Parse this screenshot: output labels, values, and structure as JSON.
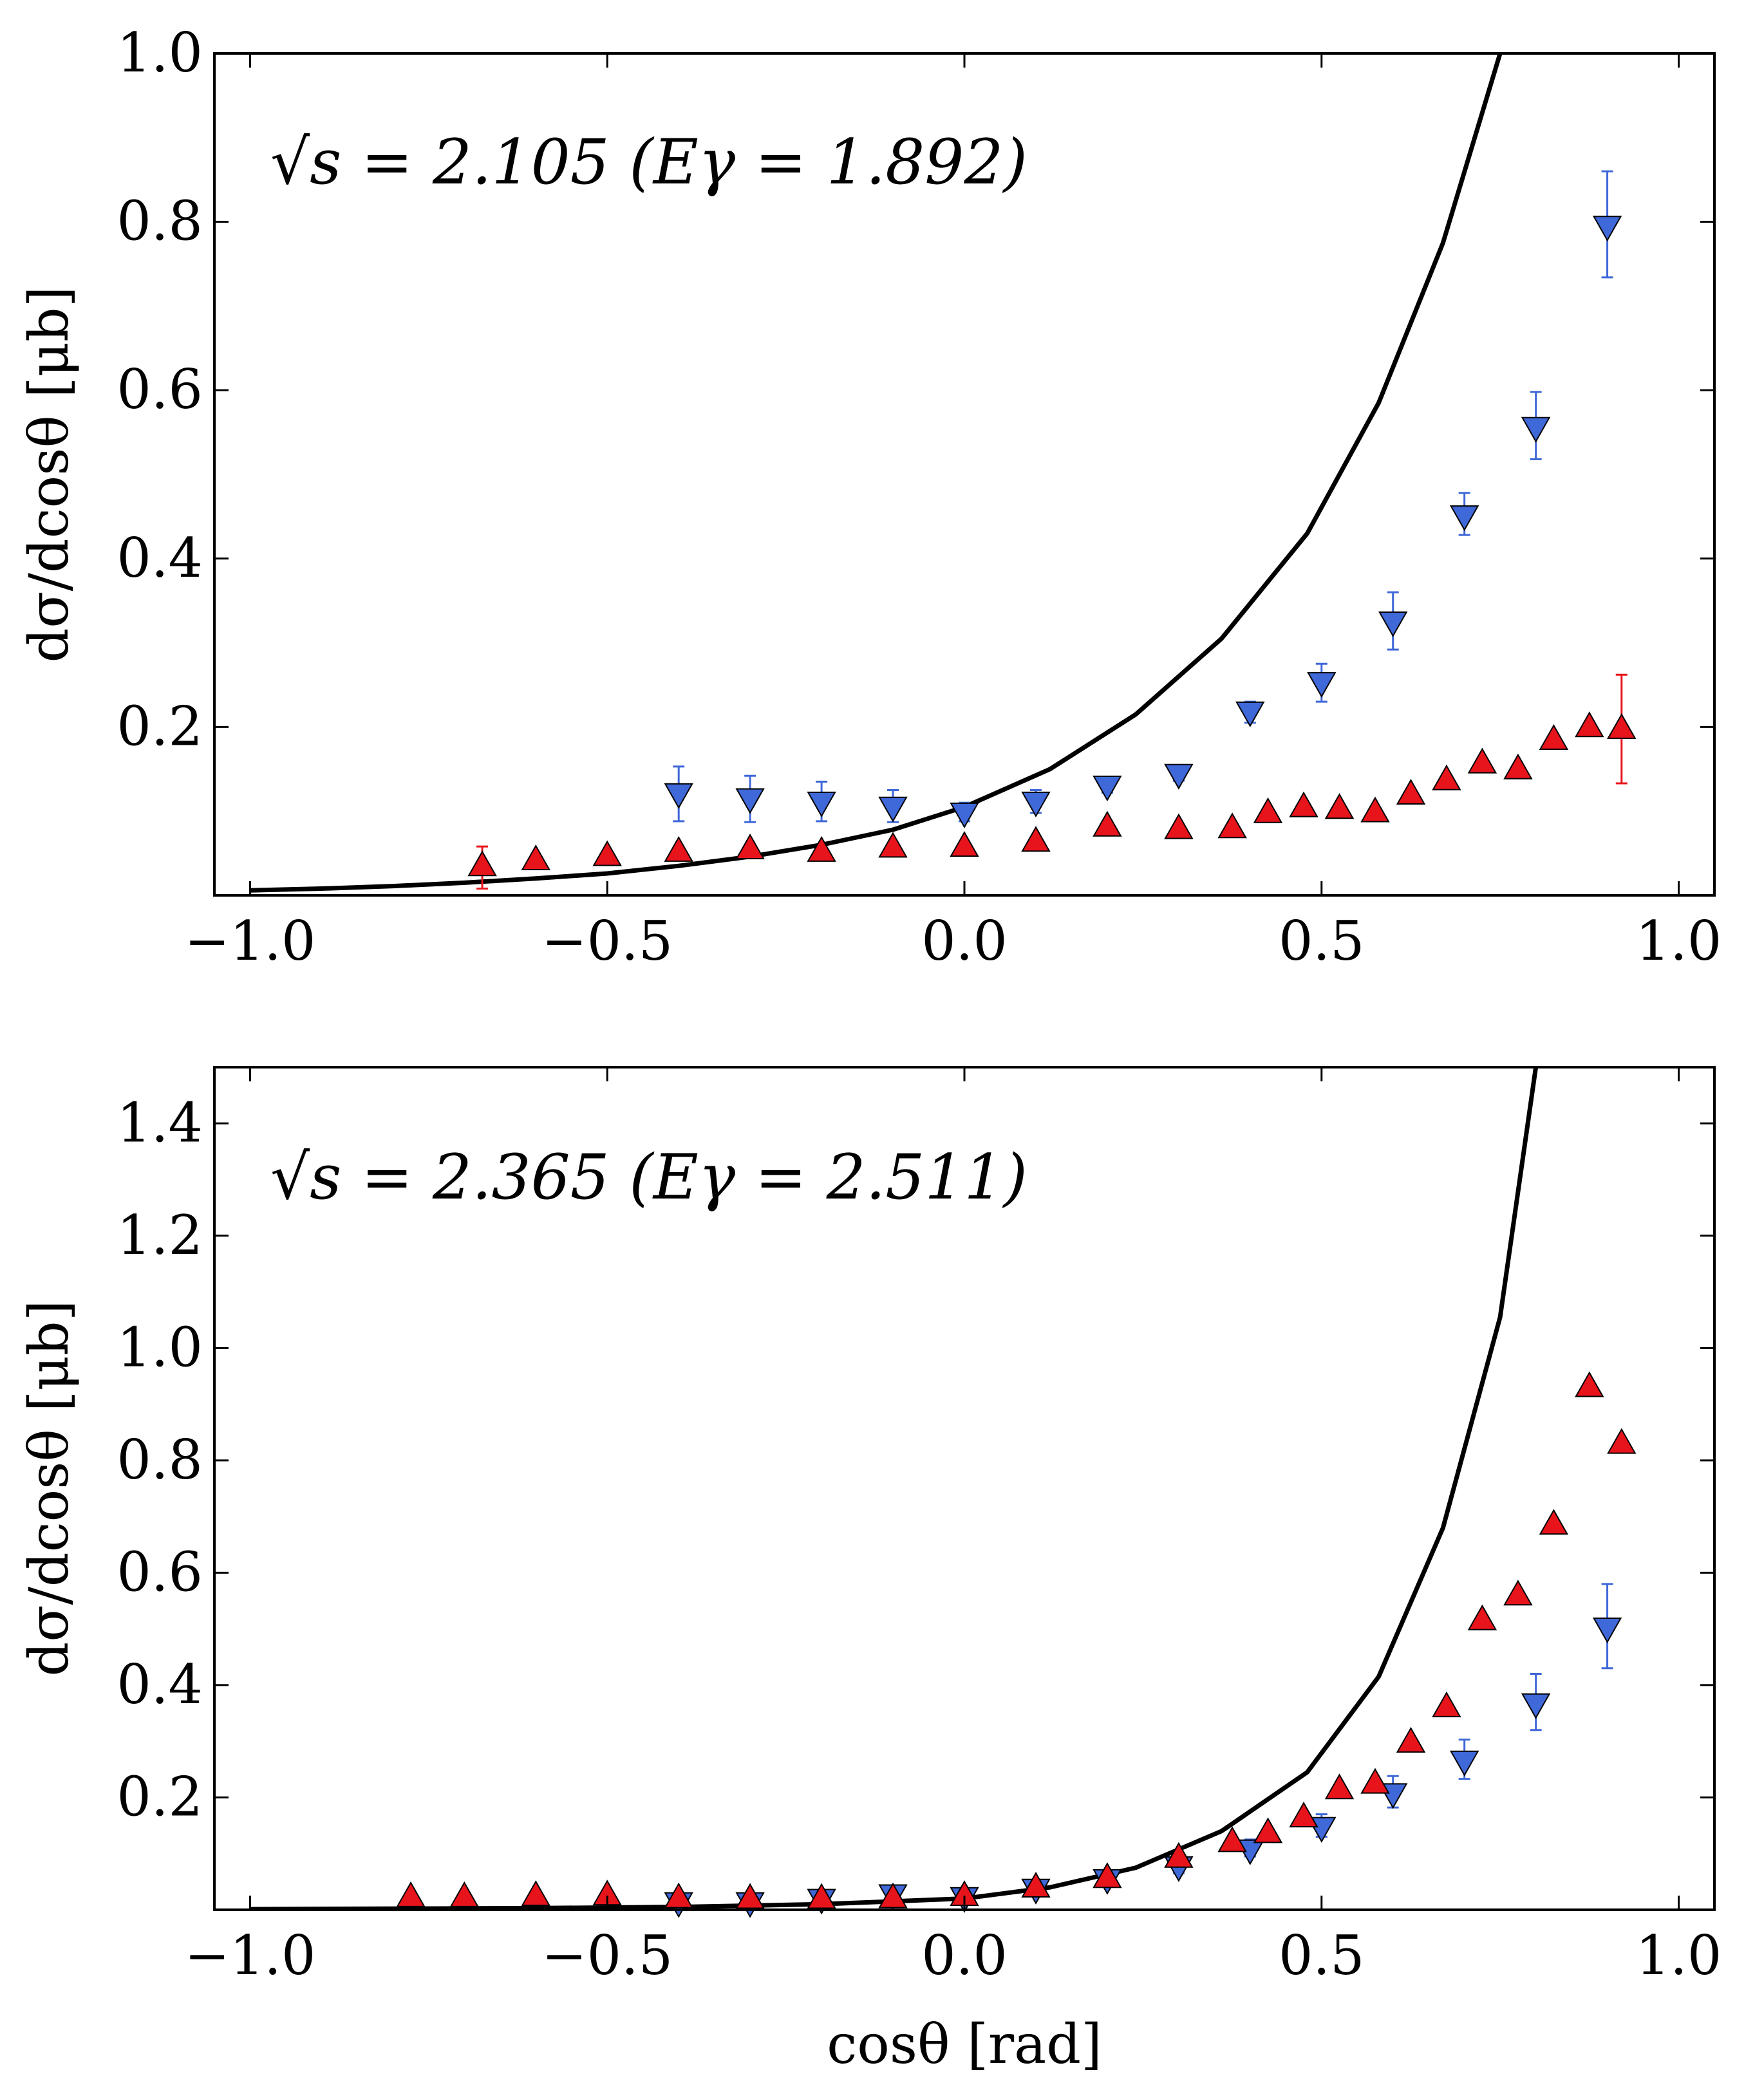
{
  "chart_data": [
    {
      "type": "scatter",
      "panel": "top",
      "annotation": "√s = 2.105 (Eγ = 1.892)",
      "xlabel": "",
      "ylabel": "dσ/dcosθ [μb]",
      "xlim": [
        -1.05,
        1.05
      ],
      "ylim": [
        0.0,
        1.0
      ],
      "xticks": [
        -1.0,
        -0.5,
        0.0,
        0.5,
        1.0
      ],
      "xtick_labels": [
        "−1.0",
        "−0.5",
        "0.0",
        "0.5",
        "1.0"
      ],
      "yticks": [
        0.2,
        0.4,
        0.6,
        0.8,
        1.0
      ],
      "ytick_labels": [
        "0.2",
        "0.4",
        "0.6",
        "0.8",
        "1.0"
      ],
      "grid": false,
      "series": [
        {
          "name": "model curve",
          "kind": "line",
          "color": "#000000",
          "x": [
            -1.0,
            -0.9,
            -0.8,
            -0.7,
            -0.6,
            -0.5,
            -0.4,
            -0.3,
            -0.2,
            -0.1,
            0.0,
            0.12,
            0.24,
            0.36,
            0.48,
            0.58,
            0.67,
            0.75
          ],
          "y": [
            0.006,
            0.008,
            0.011,
            0.015,
            0.02,
            0.026,
            0.035,
            0.046,
            0.06,
            0.078,
            0.105,
            0.15,
            0.215,
            0.305,
            0.43,
            0.585,
            0.775,
            1.0
          ]
        },
        {
          "name": "blue data (down triangles)",
          "kind": "markers",
          "marker": "triangle-down",
          "color": "#3f68d8",
          "x": [
            -0.4,
            -0.3,
            -0.2,
            -0.1,
            0.0,
            0.1,
            0.2,
            0.3,
            0.4,
            0.5,
            0.6,
            0.7,
            0.8,
            0.9
          ],
          "y": [
            0.123,
            0.117,
            0.113,
            0.107,
            0.1,
            0.113,
            0.132,
            0.146,
            0.22,
            0.255,
            0.327,
            0.453,
            0.558,
            0.797
          ],
          "err_low": [
            0.035,
            0.03,
            0.025,
            0.02,
            0.012,
            0.015,
            0.01,
            0.01,
            0.015,
            0.025,
            0.035,
            0.025,
            0.04,
            0.063
          ],
          "err_high": [
            0.03,
            0.025,
            0.022,
            0.018,
            0.01,
            0.012,
            0.008,
            0.008,
            0.01,
            0.02,
            0.033,
            0.025,
            0.04,
            0.063
          ]
        },
        {
          "name": "red data (up triangles)",
          "kind": "markers",
          "marker": "triangle-up",
          "color": "#e8141c",
          "x": [
            -0.675,
            -0.6,
            -0.5,
            -0.4,
            -0.3,
            -0.2,
            -0.1,
            0.0,
            0.1,
            0.2,
            0.3,
            0.375,
            0.425,
            0.475,
            0.525,
            0.575,
            0.625,
            0.675,
            0.725,
            0.775,
            0.825,
            0.875,
            0.92
          ],
          "y": [
            0.033,
            0.04,
            0.045,
            0.05,
            0.053,
            0.05,
            0.055,
            0.056,
            0.062,
            0.08,
            0.077,
            0.078,
            0.096,
            0.103,
            0.101,
            0.097,
            0.118,
            0.135,
            0.155,
            0.148,
            0.183,
            0.198,
            0.196
          ],
          "err_low": [
            0.025,
            0,
            0,
            0,
            0,
            0,
            0,
            0,
            0,
            0,
            0,
            0,
            0,
            0,
            0,
            0,
            0,
            0,
            0,
            0,
            0,
            0,
            0.063
          ],
          "err_high": [
            0.025,
            0,
            0,
            0,
            0,
            0,
            0,
            0,
            0,
            0,
            0,
            0,
            0,
            0,
            0,
            0,
            0,
            0,
            0,
            0,
            0,
            0,
            0.066
          ]
        }
      ]
    },
    {
      "type": "scatter",
      "panel": "bottom",
      "annotation": "√s = 2.365 (Eγ = 2.511)",
      "xlabel": "cosθ [rad]",
      "ylabel": "dσ/dcosθ [μb]",
      "xlim": [
        -1.05,
        1.05
      ],
      "ylim": [
        0.0,
        1.5
      ],
      "xticks": [
        -1.0,
        -0.5,
        0.0,
        0.5,
        1.0
      ],
      "xtick_labels": [
        "−1.0",
        "−0.5",
        "0.0",
        "0.5",
        "1.0"
      ],
      "yticks": [
        0.2,
        0.4,
        0.6,
        0.8,
        1.0,
        1.2,
        1.4
      ],
      "ytick_labels": [
        "0.2",
        "0.4",
        "0.6",
        "0.8",
        "1.0",
        "1.2",
        "1.4"
      ],
      "grid": false,
      "series": [
        {
          "name": "model curve",
          "kind": "line",
          "color": "#000000",
          "x": [
            -1.0,
            -0.8,
            -0.6,
            -0.4,
            -0.2,
            0.0,
            0.12,
            0.24,
            0.36,
            0.48,
            0.58,
            0.67,
            0.75,
            0.8
          ],
          "y": [
            0.001,
            0.002,
            0.003,
            0.005,
            0.01,
            0.02,
            0.04,
            0.075,
            0.14,
            0.245,
            0.415,
            0.68,
            1.055,
            1.5
          ]
        },
        {
          "name": "blue data (down triangles)",
          "kind": "markers",
          "marker": "triangle-down",
          "color": "#3f68d8",
          "x": [
            -0.4,
            -0.3,
            -0.2,
            -0.1,
            0.0,
            0.1,
            0.2,
            0.3,
            0.4,
            0.5,
            0.6,
            0.7,
            0.8,
            0.9
          ],
          "y": [
            0.016,
            0.016,
            0.022,
            0.03,
            0.025,
            0.04,
            0.057,
            0.08,
            0.11,
            0.15,
            0.21,
            0.268,
            0.37,
            0.505
          ],
          "err_low": [
            0.005,
            0.005,
            0.006,
            0.008,
            0.006,
            0.008,
            0.01,
            0.015,
            0.015,
            0.02,
            0.028,
            0.035,
            0.05,
            0.075
          ],
          "err_high": [
            0.005,
            0.005,
            0.006,
            0.008,
            0.006,
            0.008,
            0.01,
            0.015,
            0.015,
            0.02,
            0.028,
            0.035,
            0.05,
            0.075
          ]
        },
        {
          "name": "red data (up triangles)",
          "kind": "markers",
          "marker": "triangle-up",
          "color": "#e8141c",
          "x": [
            -0.775,
            -0.7,
            -0.6,
            -0.5,
            -0.4,
            -0.3,
            -0.2,
            -0.1,
            0.0,
            0.1,
            0.2,
            0.3,
            0.375,
            0.425,
            0.475,
            0.525,
            0.575,
            0.625,
            0.675,
            0.725,
            0.775,
            0.825,
            0.875,
            0.92
          ],
          "y": [
            0.02,
            0.02,
            0.022,
            0.023,
            0.018,
            0.017,
            0.017,
            0.018,
            0.022,
            0.037,
            0.054,
            0.09,
            0.118,
            0.134,
            0.162,
            0.212,
            0.222,
            0.295,
            0.358,
            0.513,
            0.557,
            0.683,
            0.928,
            0.827
          ],
          "err_low": [
            0,
            0,
            0,
            0,
            0,
            0,
            0,
            0,
            0,
            0,
            0,
            0,
            0,
            0,
            0,
            0,
            0,
            0,
            0,
            0,
            0,
            0,
            0,
            0
          ],
          "err_high": [
            0,
            0,
            0,
            0,
            0,
            0,
            0,
            0,
            0,
            0,
            0,
            0,
            0,
            0,
            0,
            0,
            0,
            0,
            0,
            0,
            0,
            0,
            0,
            0
          ]
        }
      ]
    }
  ]
}
